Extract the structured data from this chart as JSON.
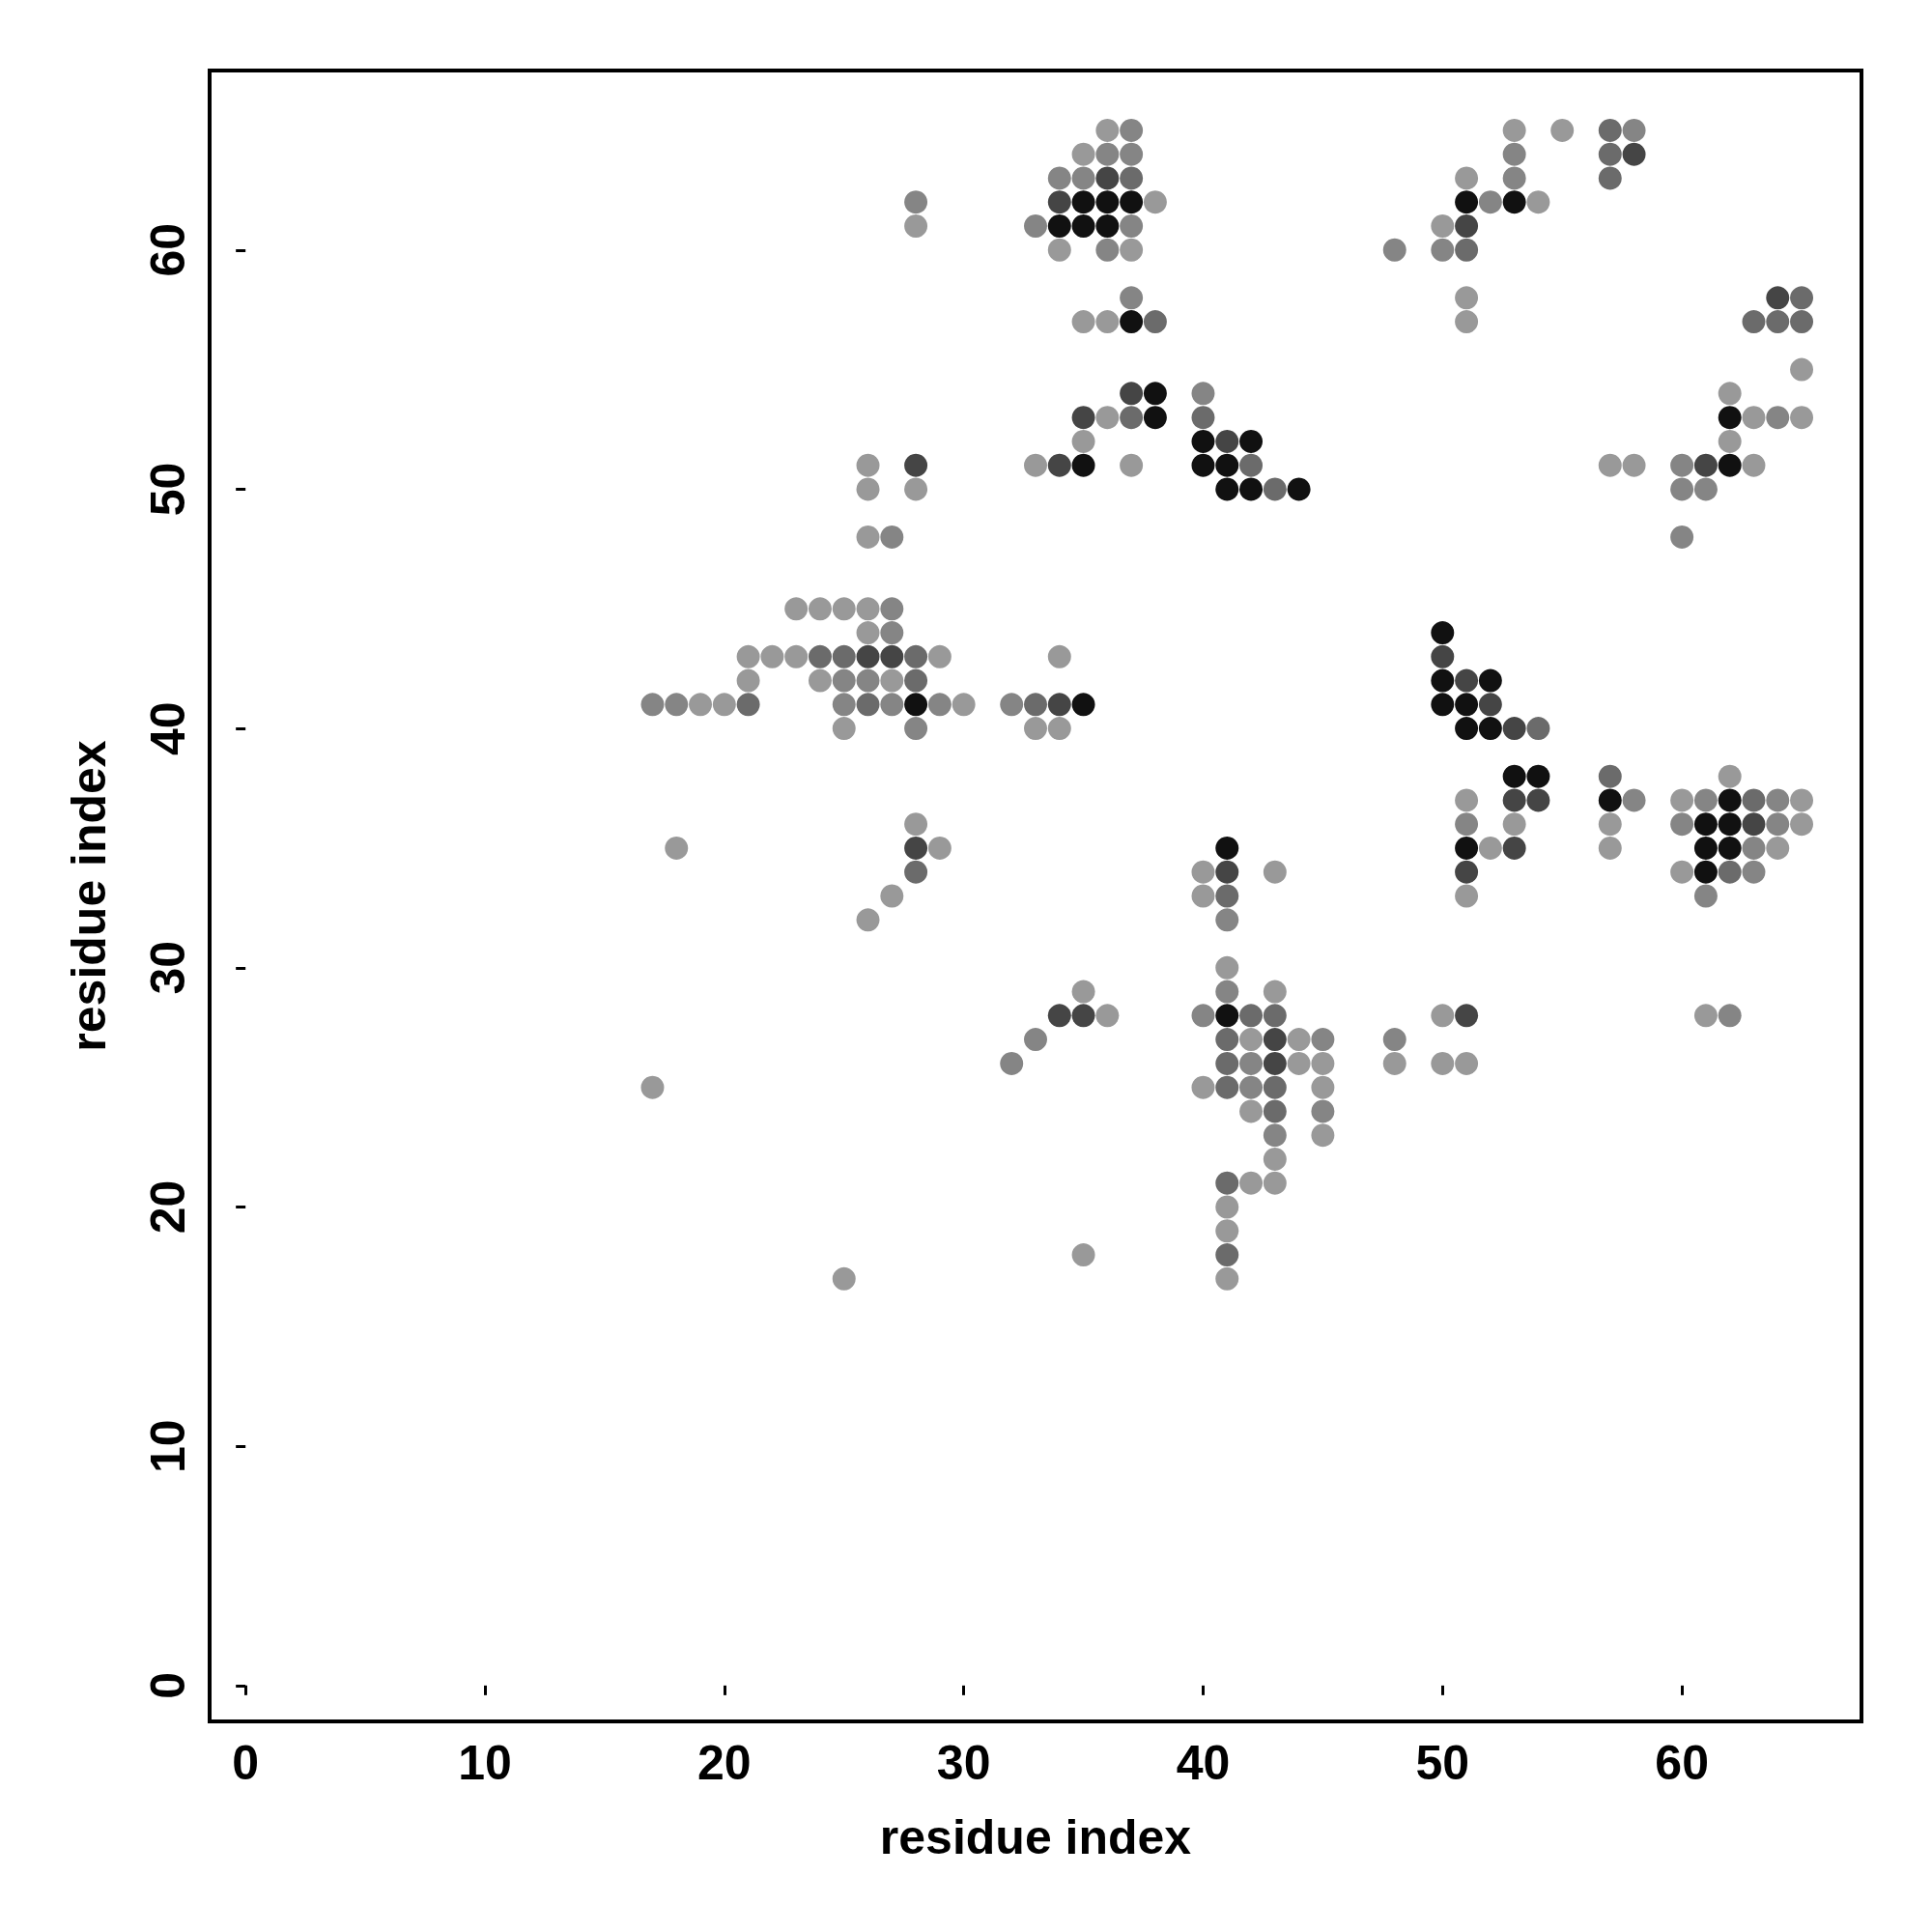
{
  "chart_data": {
    "type": "scatter",
    "xlabel": "residue index",
    "ylabel": "residue index",
    "xlim": [
      -1.5,
      67.5
    ],
    "ylim": [
      -1.5,
      67.5
    ],
    "xticks": [
      0,
      10,
      20,
      30,
      40,
      50,
      60
    ],
    "yticks": [
      0,
      10,
      20,
      30,
      40,
      50,
      60
    ],
    "grid": false,
    "marker": "circle",
    "series": [
      {
        "color": "#999999",
        "x": [
          36,
          53,
          55,
          35,
          51,
          38,
          54,
          28,
          50,
          34,
          37,
          51,
          35,
          36,
          51,
          65,
          62,
          36,
          63,
          65,
          35,
          62,
          26,
          33,
          37,
          57,
          58,
          63,
          26,
          28,
          26,
          23,
          24,
          25,
          26,
          26,
          21,
          22,
          23,
          29,
          34,
          21,
          24,
          27,
          19,
          20,
          30,
          25,
          33,
          34,
          62,
          51,
          60,
          65,
          28,
          53,
          57,
          65,
          18,
          29,
          52,
          57,
          64,
          40,
          43,
          60,
          27,
          40,
          51,
          26,
          41,
          35,
          43,
          36,
          50,
          61,
          42,
          44,
          44,
          45,
          48,
          50,
          51,
          17,
          40,
          45,
          42,
          45,
          43,
          42,
          43,
          41,
          41,
          35,
          25,
          41
        ],
        "values": [
          65,
          65,
          65,
          64,
          63,
          62,
          62,
          61,
          61,
          60,
          60,
          58,
          57,
          57,
          57,
          55,
          54,
          53,
          53,
          53,
          52,
          52,
          51,
          51,
          51,
          51,
          51,
          51,
          50,
          50,
          48,
          45,
          45,
          45,
          45,
          44,
          43,
          43,
          43,
          43,
          43,
          42,
          42,
          42,
          41,
          41,
          41,
          40,
          40,
          40,
          38,
          37,
          37,
          37,
          36,
          36,
          36,
          36,
          35,
          35,
          35,
          35,
          35,
          34,
          34,
          34,
          33,
          33,
          33,
          32,
          30,
          29,
          29,
          28,
          28,
          28,
          27,
          27,
          26,
          26,
          26,
          26,
          26,
          25,
          25,
          25,
          24,
          23,
          22,
          21,
          21,
          20,
          19,
          18,
          17,
          17
        ]
      },
      {
        "color": "#858585",
        "x": [
          37,
          58,
          36,
          37,
          53,
          34,
          35,
          53,
          28,
          52,
          33,
          37,
          48,
          50,
          36,
          37,
          40,
          64,
          60,
          60,
          61,
          27,
          60,
          27,
          27,
          25,
          26,
          17,
          18,
          25,
          27,
          29,
          32,
          28,
          58,
          61,
          64,
          51,
          60,
          64,
          63,
          63,
          61,
          41,
          41,
          40,
          62,
          33,
          45,
          48,
          32,
          42,
          42,
          45,
          43
        ],
        "values": [
          65,
          65,
          64,
          64,
          64,
          63,
          63,
          63,
          62,
          62,
          61,
          61,
          60,
          60,
          60,
          58,
          54,
          53,
          51,
          50,
          50,
          48,
          48,
          45,
          44,
          42,
          42,
          41,
          41,
          41,
          41,
          41,
          41,
          40,
          37,
          37,
          37,
          36,
          36,
          36,
          35,
          34,
          33,
          32,
          29,
          28,
          28,
          27,
          27,
          27,
          26,
          26,
          25,
          24,
          23
        ]
      },
      {
        "color": "#6b6b6b",
        "x": [
          57,
          57,
          37,
          57,
          51,
          65,
          38,
          63,
          64,
          65,
          37,
          40,
          42,
          43,
          24,
          25,
          28,
          28,
          21,
          26,
          33,
          54,
          57,
          63,
          62,
          28,
          41,
          42,
          43,
          41,
          41,
          41,
          43,
          43,
          41,
          41
        ],
        "values": [
          65,
          64,
          63,
          63,
          60,
          58,
          57,
          57,
          57,
          57,
          53,
          53,
          51,
          50,
          43,
          43,
          43,
          42,
          41,
          41,
          41,
          40,
          38,
          37,
          34,
          34,
          33,
          28,
          28,
          27,
          26,
          25,
          25,
          24,
          21,
          18
        ]
      },
      {
        "color": "#454545",
        "x": [
          58,
          36,
          34,
          51,
          64,
          37,
          35,
          41,
          28,
          34,
          61,
          50,
          26,
          27,
          51,
          34,
          52,
          53,
          53,
          54,
          63,
          28,
          53,
          41,
          51,
          51,
          34,
          35,
          43,
          43
        ],
        "values": [
          64,
          63,
          62,
          61,
          58,
          54,
          53,
          52,
          51,
          51,
          51,
          43,
          43,
          43,
          42,
          41,
          41,
          40,
          37,
          37,
          36,
          35,
          35,
          34,
          34,
          28,
          28,
          28,
          27,
          26
        ]
      },
      {
        "color": "#111111",
        "x": [
          35,
          36,
          37,
          51,
          53,
          34,
          35,
          36,
          37,
          38,
          38,
          62,
          40,
          42,
          35,
          40,
          41,
          62,
          41,
          42,
          44,
          50,
          50,
          52,
          28,
          35,
          50,
          51,
          51,
          52,
          53,
          54,
          57,
          62,
          61,
          62,
          41,
          51,
          61,
          62,
          61,
          41
        ],
        "values": [
          62,
          62,
          62,
          62,
          62,
          61,
          61,
          61,
          57,
          54,
          53,
          53,
          52,
          52,
          51,
          51,
          51,
          51,
          50,
          50,
          50,
          44,
          42,
          42,
          41,
          41,
          41,
          41,
          40,
          40,
          38,
          38,
          37,
          37,
          36,
          36,
          35,
          35,
          35,
          35,
          34,
          28
        ]
      }
    ]
  }
}
